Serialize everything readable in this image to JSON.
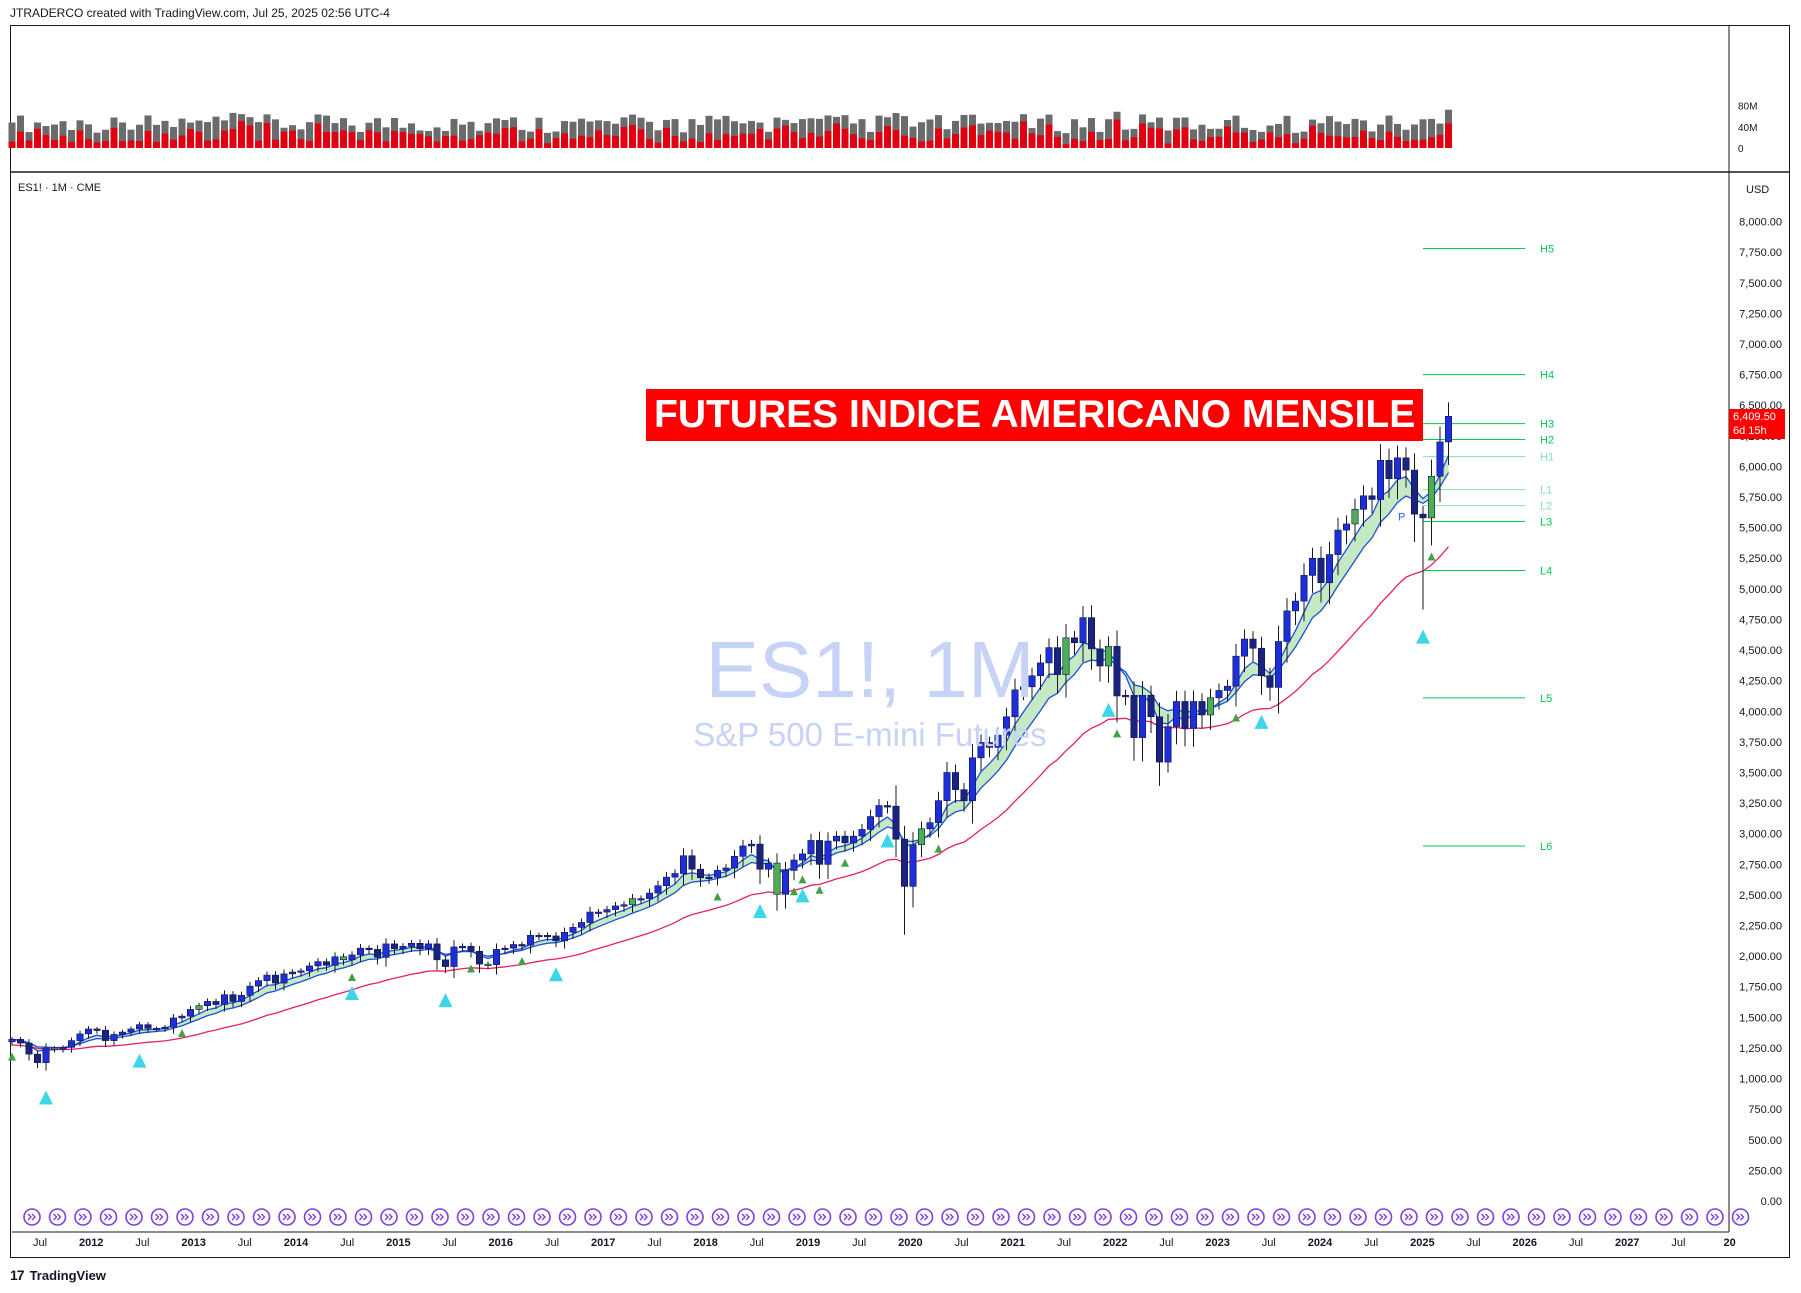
{
  "header": {
    "attribution": "JTRADERCO created with TradingView.com, Jul 25, 2025 02:56 UTC-4"
  },
  "symbol_label": "ES1! · 1M · CME",
  "currency": "USD",
  "title_banner": "FUTURES INDICE AMERICANO MENSILE",
  "watermark": {
    "main": "ES1!, 1M",
    "sub": "S&P 500 E-mini Futures"
  },
  "last_price": {
    "value": "6,409.50",
    "countdown": "6d 15h"
  },
  "footer": {
    "logo": "17",
    "brand": "TradingView"
  },
  "colors": {
    "up_candle": "#1e2fd8",
    "down_candle": "#1a237e",
    "green_candle": "#4caf50",
    "ema_band": "#7ccf7a",
    "ema_line": "#1e4fd8",
    "red_ma": "#e91e63",
    "volume_red": "#e00010",
    "volume_gray": "#6b6b6b",
    "level_line": "#00c853",
    "signal_triangle": "#3dd5e8",
    "small_triangle": "#43a047",
    "banner_bg": "#ff0000"
  },
  "chart_data": {
    "type": "candlestick",
    "title": "FUTURES INDICE AMERICANO MENSILE",
    "xlabel": "",
    "ylabel": "USD",
    "ylim": [
      0,
      8000
    ],
    "y_ticks": [
      "8,000.00",
      "7,750.00",
      "7,500.00",
      "7,250.00",
      "7,000.00",
      "6,750.00",
      "6,500.00",
      "6,250.00",
      "6,000.00",
      "5,750.00",
      "5,500.00",
      "5,250.00",
      "5,000.00",
      "4,750.00",
      "4,500.00",
      "4,250.00",
      "4,000.00",
      "3,750.00",
      "3,500.00",
      "3,250.00",
      "3,000.00",
      "2,750.00",
      "2,500.00",
      "2,250.00",
      "2,000.00",
      "1,750.00",
      "1,500.00",
      "1,250.00",
      "1,000.00",
      "750.00",
      "500.00",
      "250.00",
      "0.00"
    ],
    "x_ticks": [
      "Jul",
      "2012",
      "Jul",
      "2013",
      "Jul",
      "2014",
      "Jul",
      "2015",
      "Jul",
      "2016",
      "Jul",
      "2017",
      "Jul",
      "2018",
      "Jul",
      "2019",
      "Jul",
      "2020",
      "Jul",
      "2021",
      "Jul",
      "2022",
      "Jul",
      "2023",
      "Jul",
      "2024",
      "Jul",
      "2025",
      "Jul",
      "2026",
      "Jul",
      "2027",
      "Jul",
      "20"
    ],
    "x_range": [
      "2011-06",
      "2028-01"
    ],
    "volume_axis_ticks": [
      "80M",
      "40M",
      "0"
    ],
    "closes_by_year": {
      "2011": [
        1320,
        1290,
        1200,
        1130,
        1250,
        1240,
        1255
      ],
      "2012": [
        1310,
        1365,
        1405,
        1395,
        1310,
        1360,
        1380,
        1405,
        1440,
        1410,
        1410,
        1420
      ],
      "2013": [
        1495,
        1510,
        1565,
        1595,
        1630,
        1605,
        1685,
        1630,
        1680,
        1755,
        1800,
        1845
      ],
      "2014": [
        1780,
        1855,
        1870,
        1880,
        1920,
        1955,
        1925,
        1995,
        1970,
        2010,
        2065,
        2055
      ],
      "2015": [
        1990,
        2100,
        2060,
        2080,
        2105,
        2060,
        2100,
        1970,
        1915,
        2075,
        2080,
        2040
      ],
      "2016": [
        1935,
        1930,
        2055,
        2065,
        2095,
        2090,
        2170,
        2170,
        2165,
        2125,
        2195,
        2235
      ],
      "2017": [
        2275,
        2360,
        2360,
        2380,
        2410,
        2420,
        2470,
        2470,
        2515,
        2575,
        2645,
        2675
      ],
      "2018": [
        2820,
        2710,
        2640,
        2645,
        2700,
        2720,
        2815,
        2900,
        2915,
        2710,
        2760,
        2505
      ],
      "2019": [
        2700,
        2785,
        2835,
        2945,
        2750,
        2940,
        2980,
        2925,
        2980,
        3035,
        3140,
        3230
      ],
      "2020": [
        3225,
        2955,
        2570,
        2910,
        3040,
        3090,
        3270,
        3500,
        3360,
        3270,
        3620,
        3745
      ],
      "2021": [
        3705,
        3805,
        3955,
        4175,
        4200,
        4290,
        4395,
        4520,
        4300,
        4600,
        4560,
        4765
      ],
      "2022": [
        4510,
        4370,
        4530,
        4125,
        4130,
        3785,
        4130,
        3955,
        3585,
        3875,
        4080,
        3860
      ],
      "2023": [
        4080,
        3970,
        4110,
        4170,
        4205,
        4450,
        4590,
        4515,
        4290,
        4195,
        4570,
        4820
      ],
      "2024": [
        4900,
        5110,
        5250,
        5050,
        5280,
        5480,
        5530,
        5650,
        5760,
        5730,
        6050,
        5900
      ],
      "2025": [
        6070,
        5970,
        5610,
        5580,
        5920,
        6200,
        6409.5
      ]
    },
    "series": [
      {
        "name": "H5",
        "values": [
          7780
        ]
      },
      {
        "name": "H4",
        "values": [
          6750
        ]
      },
      {
        "name": "H3",
        "values": [
          6350
        ]
      },
      {
        "name": "H2",
        "values": [
          6220
        ]
      },
      {
        "name": "H1",
        "values": [
          6080
        ]
      },
      {
        "name": "L1",
        "values": [
          5810
        ]
      },
      {
        "name": "L2",
        "values": [
          5680
        ]
      },
      {
        "name": "L3",
        "values": [
          5550
        ]
      },
      {
        "name": "L4",
        "values": [
          5150
        ]
      },
      {
        "name": "L5",
        "values": [
          4110
        ]
      },
      {
        "name": "L6",
        "values": [
          2900
        ]
      }
    ],
    "pivot_marker": "P",
    "grid": false,
    "legend": "none"
  }
}
